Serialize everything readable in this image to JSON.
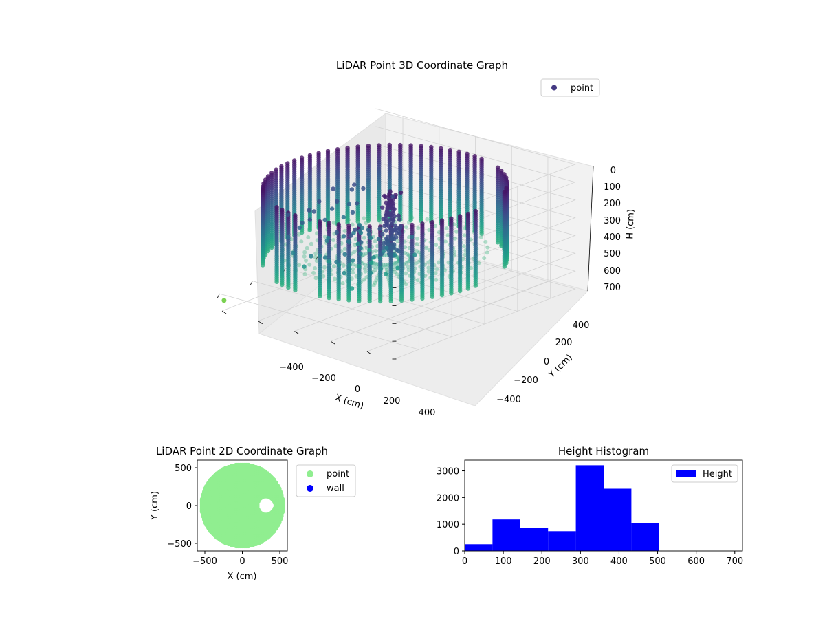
{
  "chart_data": [
    {
      "type": "scatter3d",
      "title": "LiDAR Point 3D Coordinate Graph",
      "xlabel": "X (cm)",
      "ylabel": "Y (cm)",
      "zlabel": "H (cm)",
      "xlim": [
        -550,
        550
      ],
      "ylim": [
        -550,
        550
      ],
      "zlim": [
        0,
        700
      ],
      "z_inverted": true,
      "xticks": [
        "−400",
        "−200",
        "0",
        "200",
        "400"
      ],
      "yticks": [
        "−400",
        "−200",
        "0",
        "200",
        "400"
      ],
      "zticks": [
        "0",
        "100",
        "200",
        "300",
        "400",
        "500",
        "600",
        "700"
      ],
      "legend": {
        "position": "top-right",
        "entries": [
          {
            "label": "point",
            "color": "#443983"
          }
        ]
      },
      "colormap": "viridis",
      "wall": {
        "radius_cm": 500,
        "height_range_cm": [
          80,
          505
        ],
        "gaps_deg": [
          [
            95,
            115
          ],
          [
            160,
            168
          ],
          [
            320,
            338
          ],
          [
            0,
            6
          ]
        ]
      },
      "floor": {
        "radius_cm": 440,
        "height_cm": 505
      },
      "object": {
        "x_cm": 50,
        "y_cm": 80,
        "height_range_cm": [
          80,
          420
        ]
      },
      "marker": {
        "x_cm": 450,
        "y_cm": -480,
        "h_cm": 700,
        "color": "#7ad151"
      }
    },
    {
      "type": "scatter",
      "title": "LiDAR Point 2D Coordinate Graph",
      "xlabel": "X (cm)",
      "ylabel": "Y (cm)",
      "xlim": [
        -600,
        600
      ],
      "ylim": [
        -600,
        600
      ],
      "xticks": [
        "−500",
        "0",
        "500"
      ],
      "yticks": [
        "−500",
        "0",
        "500"
      ],
      "legend": {
        "position": "outside-right",
        "entries": [
          {
            "label": "point",
            "color": "#90ee90"
          },
          {
            "label": "wall",
            "color": "#0000ff"
          }
        ]
      },
      "point_region": {
        "center_cm": [
          0,
          0
        ],
        "radius_cm": 540
      },
      "hole": {
        "center_cm": [
          320,
          0
        ],
        "radius_cm": 120
      }
    },
    {
      "type": "histogram",
      "title": "Height Histogram",
      "xlim": [
        0,
        720
      ],
      "ylim": [
        0,
        3400
      ],
      "xticks": [
        0,
        100,
        200,
        300,
        400,
        500,
        600,
        700
      ],
      "yticks": [
        0,
        1000,
        2000,
        3000
      ],
      "legend": {
        "position": "top-right",
        "entries": [
          {
            "label": "Height",
            "color": "#0000ff"
          }
        ]
      },
      "series": [
        {
          "name": "Height",
          "color": "#0000ff",
          "bin_edges": [
            0,
            72,
            144,
            216,
            288,
            360,
            432,
            504,
            576,
            648,
            720
          ],
          "counts": [
            250,
            1180,
            870,
            740,
            3210,
            2330,
            1040,
            0,
            0,
            0
          ]
        }
      ]
    }
  ]
}
